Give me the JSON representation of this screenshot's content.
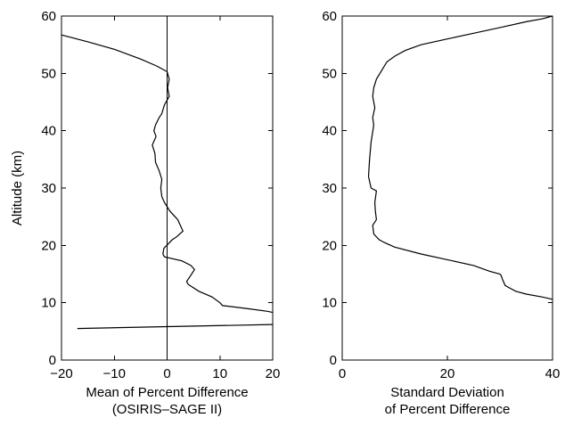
{
  "chart_data": [
    {
      "type": "line",
      "xlabel": [
        "Mean of Percent Difference",
        "(OSIRIS–SAGE II)"
      ],
      "ylabel": "Altitude (km)",
      "xlim": [
        -20,
        20
      ],
      "ylim": [
        0,
        60
      ],
      "xticks": [
        -20,
        -10,
        0,
        10,
        20
      ],
      "yticks": [
        0,
        10,
        20,
        30,
        40,
        50,
        60
      ],
      "xtick_labels": [
        "−20",
        "−10",
        "0",
        "10",
        "20"
      ],
      "ytick_labels": [
        "0",
        "10",
        "20",
        "30",
        "40",
        "50",
        "60"
      ],
      "grid": false,
      "reference_line": {
        "x": 0
      },
      "series": [
        {
          "x": [
            -20,
            -15,
            -10,
            -5,
            -2,
            0,
            0.4,
            0.1,
            0.4,
            -0.5,
            -1,
            -1.5,
            -2.2,
            -2.5,
            -2.1,
            -2.8,
            -2.3,
            -2.2,
            -1.5,
            -1,
            -1.2,
            -1,
            -0.5,
            0.5,
            1.5,
            2,
            3,
            1.8,
            1,
            -0.6,
            -0.8,
            -0.5,
            2.8,
            4.5,
            5.2,
            4.5,
            3.7,
            4,
            6,
            8.5,
            10,
            10.5,
            15,
            19,
            20
          ],
          "y": [
            56.7,
            55.5,
            54.2,
            52.5,
            51.3,
            50.3,
            49,
            47.5,
            46,
            44.5,
            43,
            42.3,
            41,
            40,
            39,
            37.5,
            36,
            34.5,
            33,
            31.5,
            30,
            28.5,
            27.5,
            26,
            25,
            24.5,
            22.5,
            21.5,
            21,
            19.5,
            18.5,
            18,
            17.3,
            16.5,
            15.8,
            14.8,
            13.7,
            13.2,
            12,
            11,
            10,
            9.5,
            9,
            8.5,
            8.3
          ]
        },
        {
          "x": [
            -17,
            20
          ],
          "y": [
            5.5,
            6.2
          ]
        }
      ]
    },
    {
      "type": "line",
      "xlabel": [
        "Standard Deviation",
        "of Percent Difference"
      ],
      "ylabel": "",
      "xlim": [
        0,
        40
      ],
      "ylim": [
        0,
        60
      ],
      "xticks": [
        0,
        20,
        40
      ],
      "yticks": [
        0,
        10,
        20,
        30,
        40,
        50,
        60
      ],
      "xtick_labels": [
        "0",
        "20",
        "40"
      ],
      "ytick_labels": [
        "0",
        "10",
        "20",
        "30",
        "40",
        "50",
        "60"
      ],
      "grid": false,
      "series": [
        {
          "x": [
            40,
            38,
            35,
            30,
            25,
            20,
            15,
            12,
            10,
            8.5,
            7.5,
            6.5,
            6,
            5.8,
            6.2,
            5.8,
            6,
            5.5,
            5.2,
            5,
            5.5,
            6.5,
            6.2,
            6.3,
            6.5,
            5.8,
            6,
            7,
            8,
            10,
            15,
            20,
            25,
            28,
            30,
            30.2,
            30.5,
            31,
            32,
            33,
            35,
            38,
            40
          ],
          "y": [
            60,
            59.5,
            59,
            58,
            57,
            56,
            55,
            54,
            53,
            52,
            50.5,
            49,
            47.5,
            46,
            44,
            42.3,
            41,
            38,
            35,
            32,
            30,
            29.5,
            27.5,
            26,
            24.5,
            23.5,
            22,
            21,
            20.5,
            19.7,
            18.5,
            17.5,
            16.5,
            15.5,
            15,
            14.8,
            14,
            13,
            12.5,
            12,
            11.5,
            11,
            10.6
          ]
        }
      ]
    }
  ]
}
